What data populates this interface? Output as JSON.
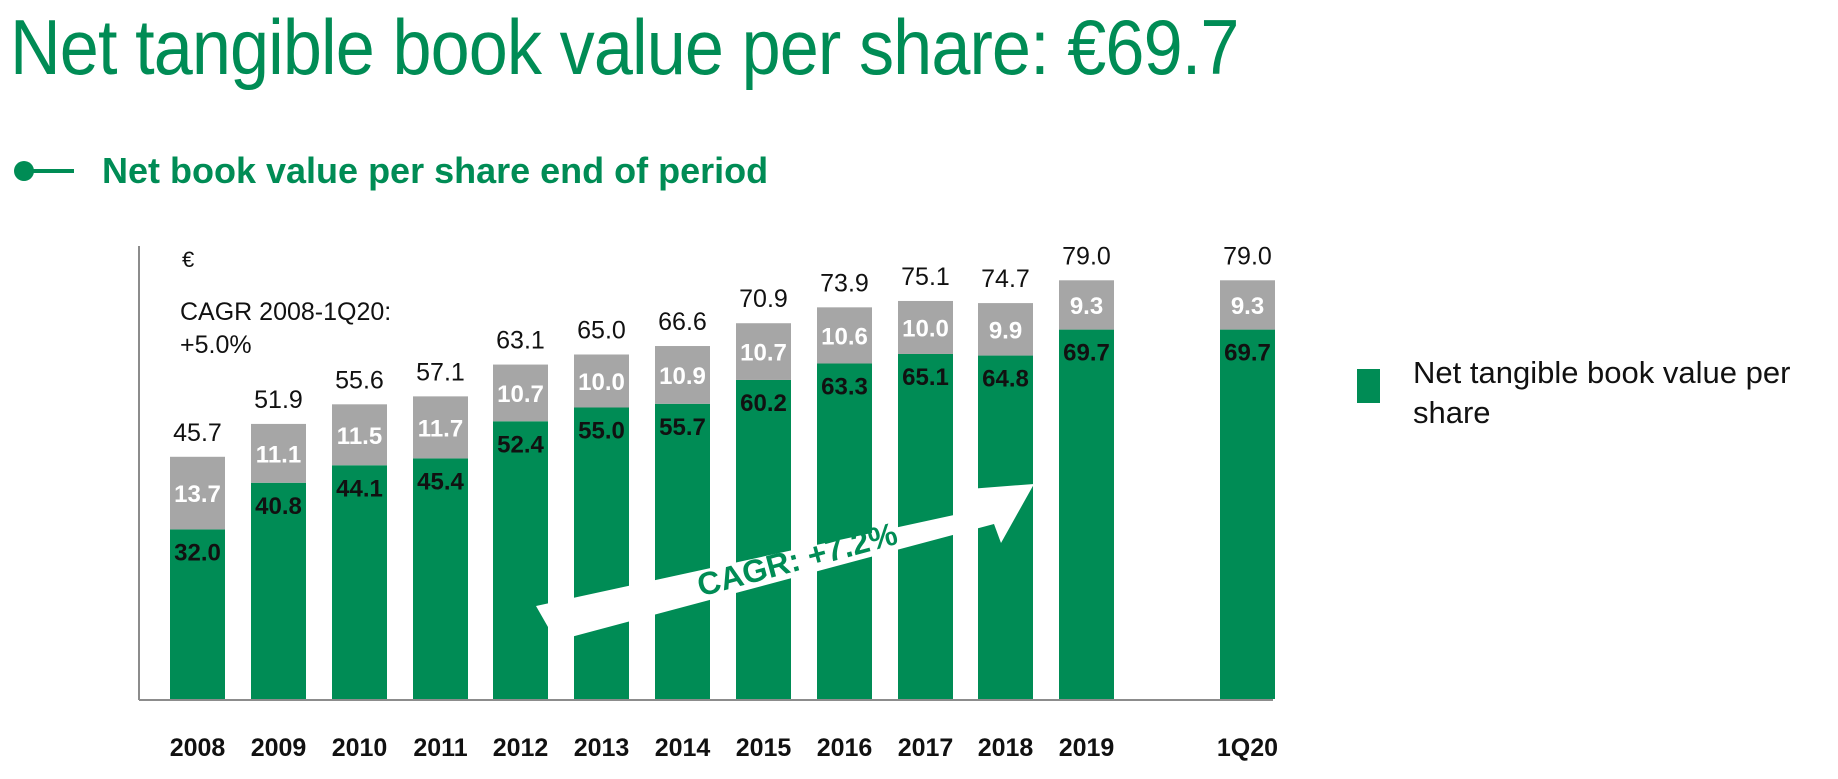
{
  "title": "Net tangible book value per share: €69.7",
  "subtitle": "Net book value per share end of period",
  "unit": "€",
  "cagr_note": [
    "CAGR 2008-1Q20:",
    "+5.0%"
  ],
  "arrow_label": "CAGR: +7.2%",
  "legend_label": "Net tangible book value per share",
  "colors": {
    "green": "#008c55",
    "grey": "#a6a6a6",
    "axis": "#8c8c8c"
  },
  "chart_data": {
    "type": "bar",
    "stacked": true,
    "categories": [
      "2008",
      "2009",
      "2010",
      "2011",
      "2012",
      "2013",
      "2014",
      "2015",
      "2016",
      "2017",
      "2018",
      "2019",
      "1Q20"
    ],
    "series": [
      {
        "name": "Net tangible book value per share",
        "color": "#008c55",
        "values": [
          32.0,
          40.8,
          44.1,
          45.4,
          52.4,
          55.0,
          55.7,
          60.2,
          63.3,
          65.1,
          64.8,
          69.7,
          69.7
        ]
      },
      {
        "color": "#a6a6a6",
        "values": [
          13.7,
          11.1,
          11.5,
          11.7,
          10.7,
          10.0,
          10.9,
          10.7,
          10.6,
          10.0,
          9.9,
          9.3,
          9.3
        ]
      }
    ],
    "totals": [
      45.7,
      51.9,
      55.6,
      57.1,
      63.1,
      65.0,
      66.6,
      70.9,
      73.9,
      75.1,
      74.7,
      79.0,
      79.0
    ],
    "ylim": [
      0,
      90
    ],
    "legend": "right",
    "grid": false
  }
}
